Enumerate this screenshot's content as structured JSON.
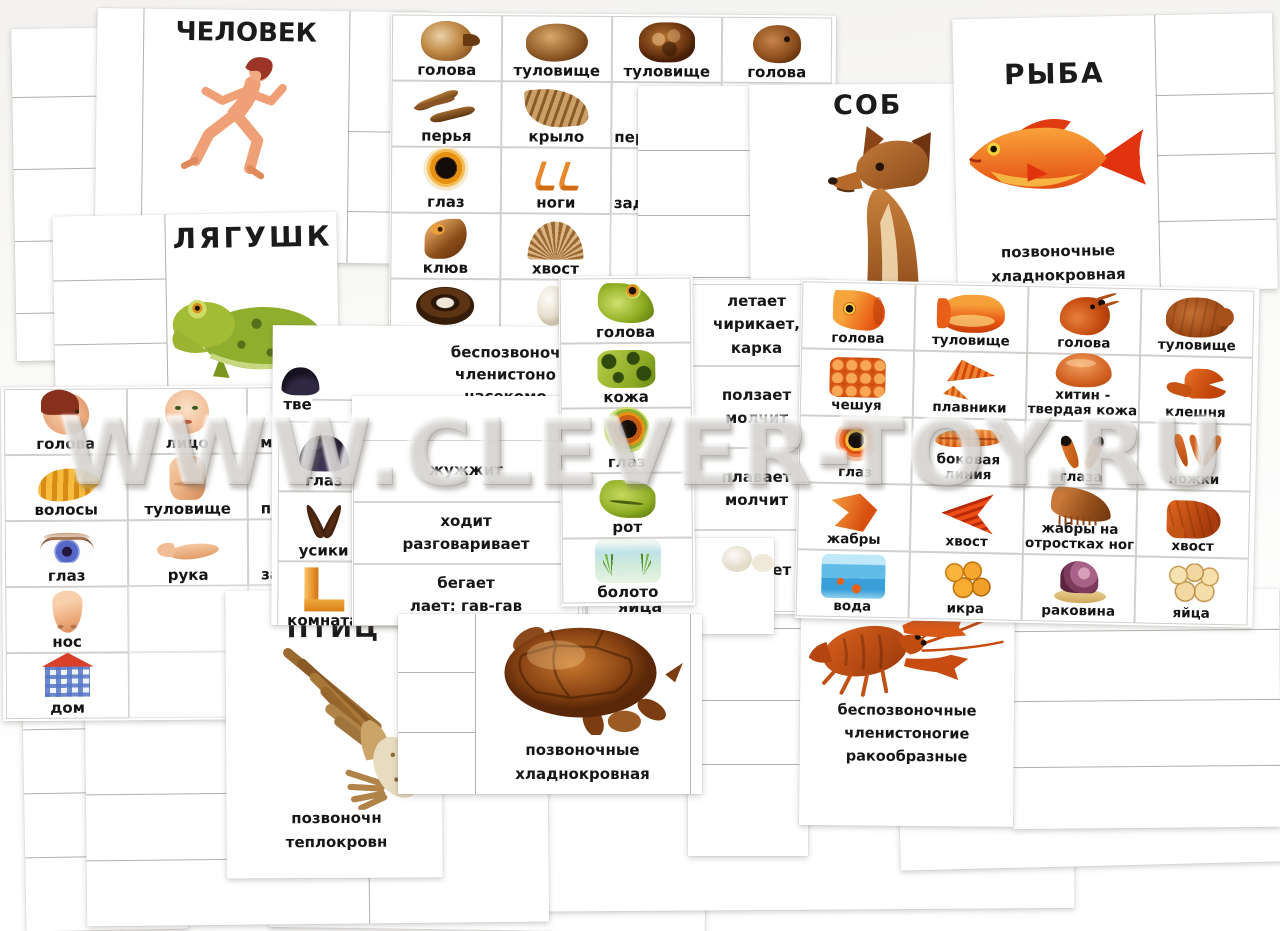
{
  "watermark": "WWW.CLEVER-TOY.RU",
  "colors": {
    "fish_red": "#e8481a",
    "frog_green": "#8fae2e",
    "text": "#1a1a1a",
    "card_line": "#767068"
  },
  "cards": {
    "human": {
      "title": "ЧЕЛОВЕК"
    },
    "frog": {
      "title": "ЛЯГУШК"
    },
    "dog": {
      "title": "СОБ"
    },
    "fish": {
      "title": "РЫБА",
      "caption": [
        "позвоночные",
        "хладнокровная"
      ]
    },
    "bird": {
      "title": "ПТИЦ",
      "caption": [
        "позвоночн",
        "теплокровн"
      ]
    },
    "turtle": {
      "caption": [
        "позвоночные",
        "хладнокровная"
      ]
    },
    "crayfish": {
      "caption": [
        "беспозвоночные",
        "членистоногие",
        "ракообразные"
      ]
    },
    "insect": {
      "caption": [
        "беспозвоноч",
        "членистоно",
        "насекомо"
      ]
    }
  },
  "fragments": {
    "eggs_label": "яйца",
    "fly_cell": "тве"
  },
  "grids": {
    "bird_turtle": {
      "items": [
        {
          "label": "голова",
          "icon": "bird-head"
        },
        {
          "label": "туловище",
          "icon": "bird-body"
        },
        {
          "label": "туловище",
          "icon": "turtle-shell"
        },
        {
          "label": "голова",
          "icon": "turtle-head"
        },
        {
          "label": "перья",
          "icon": "feathers"
        },
        {
          "label": "крыло",
          "icon": "wing"
        },
        {
          "label": "пер",
          "icon": "none",
          "cls": "frag"
        },
        null,
        {
          "label": "глаз",
          "icon": "eye-orange"
        },
        {
          "label": "ноги",
          "icon": "bird-feet"
        },
        {
          "label": "зад",
          "icon": "none",
          "cls": "frag"
        },
        null,
        {
          "label": "клюв",
          "icon": "beak"
        },
        {
          "label": "хвост",
          "icon": "tail-fan"
        },
        null,
        null,
        {
          "label": "гнездо",
          "icon": "nest"
        },
        {
          "label": "яй",
          "icon": "egg"
        },
        null,
        null
      ]
    },
    "human_parts": {
      "items": [
        {
          "label": "голова",
          "icon": "boy-head"
        },
        {
          "label": "лицо",
          "icon": "face"
        },
        {
          "label": "м",
          "icon": "none",
          "cls": "frag"
        },
        {
          "label": "волосы",
          "icon": "hair"
        },
        {
          "label": "туловище",
          "icon": "torso"
        },
        {
          "label": "перед",
          "icon": "none",
          "cls": "frag"
        },
        {
          "label": "глаз",
          "icon": "eye-blue"
        },
        {
          "label": "рука",
          "icon": "arm"
        },
        {
          "label": "зад",
          "icon": "none",
          "cls": "frag"
        },
        {
          "label": "нос",
          "icon": "nose"
        },
        null,
        null,
        {
          "label": "дом",
          "icon": "house"
        },
        null,
        null
      ]
    },
    "frog_parts": {
      "items": [
        {
          "label": "голова",
          "icon": "frog-head"
        },
        {
          "label": "кожа",
          "icon": "frog-skin"
        },
        {
          "label": "глаз",
          "icon": "frog-eye"
        },
        {
          "label": "рот",
          "icon": "frog-mouth"
        },
        {
          "label": "болото",
          "icon": "swamp"
        }
      ]
    },
    "fly_parts": {
      "items": [
        {
          "label": "глаз",
          "icon": "fly-eye"
        },
        {
          "label": "усики",
          "icon": "antennae"
        },
        {
          "label": "комната",
          "icon": "room"
        }
      ]
    },
    "fish_cray": {
      "items": [
        {
          "label": "голова",
          "icon": "fish-head"
        },
        {
          "label": "туловище",
          "icon": "fish-body"
        },
        {
          "label": "голова",
          "icon": "cray-head"
        },
        {
          "label": "туловище",
          "icon": "cray-body"
        },
        {
          "label": "чешуя",
          "icon": "scales"
        },
        {
          "label": "плавники",
          "icon": "fins"
        },
        {
          "label": "хитин - твердая кожа",
          "icon": "chitin"
        },
        {
          "label": "клешня",
          "icon": "claw"
        },
        {
          "label": "глаз",
          "icon": "fish-eye"
        },
        {
          "label": "боковая линия",
          "icon": "lateral"
        },
        {
          "label": "глаза",
          "icon": "stalk-eyes"
        },
        {
          "label": "ножки",
          "icon": "cray-legs"
        },
        {
          "label": "жабры",
          "icon": "gills"
        },
        {
          "label": "хвост",
          "icon": "tail-fin"
        },
        {
          "label": "жабры на отростках ног",
          "icon": "gill-legs"
        },
        {
          "label": "хвост",
          "icon": "cray-tail"
        },
        {
          "label": "вода",
          "icon": "water"
        },
        {
          "label": "икра",
          "icon": "roe"
        },
        {
          "label": "раковина",
          "icon": "shell"
        },
        {
          "label": "яйца",
          "icon": "eggs"
        }
      ]
    },
    "bird_answers": {
      "items": [
        {
          "lines": [
            "летает",
            "чирикает, карка"
          ]
        },
        {
          "lines": [
            "ползает",
            "молчит"
          ]
        },
        {
          "lines": [
            "плавает",
            "молчит"
          ]
        },
        {
          "lines": [
            "ползает"
          ]
        }
      ]
    },
    "fly_answers": {
      "items": [
        {
          "lines": [
            "жужжит"
          ]
        },
        {
          "lines": [
            "ходит",
            "разговаривает"
          ]
        },
        {
          "lines": [
            "бегает",
            "лает: гав-гав"
          ]
        }
      ]
    }
  }
}
